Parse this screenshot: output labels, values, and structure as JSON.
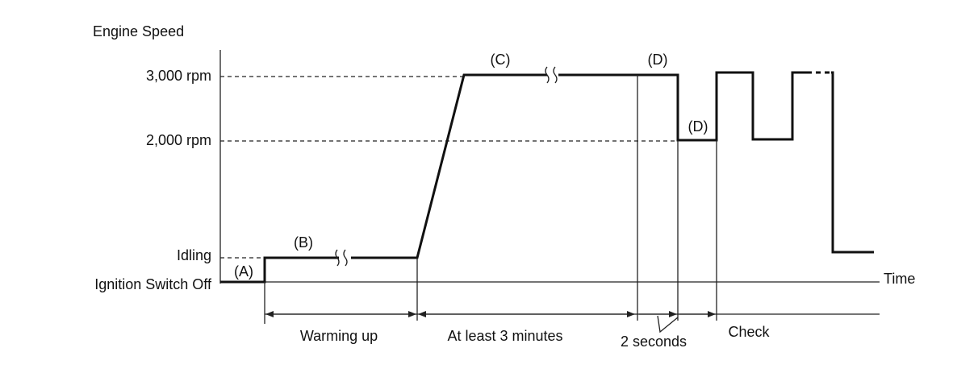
{
  "y_axis_label": "Engine Speed",
  "x_axis_label": "Time",
  "levels": [
    "3,000 rpm",
    "2,000 rpm",
    "Idling",
    "Ignition Switch Off"
  ],
  "points": [
    "(A)",
    "(B)",
    "(C)",
    "(D)",
    "(D)"
  ],
  "phases": [
    "Warming up",
    "At least 3 minutes",
    "2 seconds",
    "Check"
  ]
}
